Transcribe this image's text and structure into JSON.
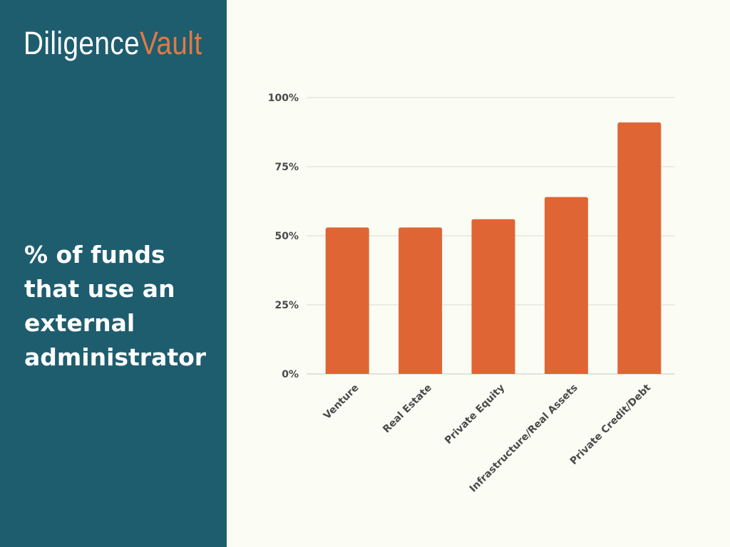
{
  "brand": {
    "logo_part1": "Diligence",
    "logo_part2": "Vault"
  },
  "headline": "% of funds that use an external administrator",
  "colors": {
    "left_panel_bg": "#1e5d6e",
    "right_panel_bg": "#fbfcf4",
    "bar": "#e06535",
    "logo_accent": "#e07a45",
    "grid": "#dcdcd4",
    "text_dark": "#4a4a4a",
    "text_light": "#ffffff"
  },
  "chart_data": {
    "type": "bar",
    "categories": [
      "Venture",
      "Real Estate",
      "Private Equity",
      "Infrastructure/Real Assets",
      "Private Credit/Debt"
    ],
    "values": [
      53,
      53,
      56,
      64,
      91
    ],
    "ylim": [
      0,
      100
    ],
    "yticks": [
      0,
      25,
      50,
      75,
      100
    ],
    "ytick_labels": [
      "0%",
      "25%",
      "50%",
      "75%",
      "100%"
    ],
    "grid": true,
    "title": "",
    "xlabel": "",
    "ylabel": ""
  }
}
